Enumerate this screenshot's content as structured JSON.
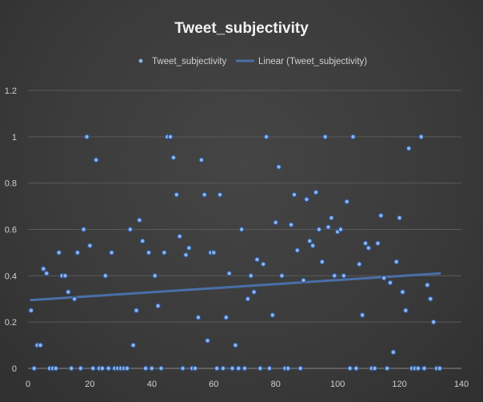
{
  "chart_data": {
    "type": "scatter",
    "title": "Tweet_subjectivity",
    "xlabel": "",
    "ylabel": "",
    "xlim": [
      0,
      140
    ],
    "ylim": [
      0,
      1.2
    ],
    "x_ticks": [
      "0",
      "20",
      "40",
      "60",
      "80",
      "100",
      "120",
      "140"
    ],
    "y_ticks": [
      "0",
      "0.2",
      "0.4",
      "0.6",
      "0.8",
      "1",
      "1.2"
    ],
    "grid": "horizontal",
    "legend_position": "top",
    "point_color": "#8ab4f0",
    "trend_color": "#4a6fa8",
    "series": [
      {
        "name": "Tweet_subjectivity",
        "type": "scatter",
        "points": [
          [
            1,
            0.25
          ],
          [
            2,
            0
          ],
          [
            3,
            0.1
          ],
          [
            4,
            0.1
          ],
          [
            5,
            0.43
          ],
          [
            6,
            0.41
          ],
          [
            7,
            0
          ],
          [
            8,
            0
          ],
          [
            9,
            0
          ],
          [
            10,
            0.5
          ],
          [
            11,
            0.4
          ],
          [
            12,
            0.4
          ],
          [
            13,
            0.33
          ],
          [
            14,
            0
          ],
          [
            15,
            0.3
          ],
          [
            16,
            0.5
          ],
          [
            17,
            0
          ],
          [
            18,
            0.6
          ],
          [
            19,
            1
          ],
          [
            20,
            0.53
          ],
          [
            21,
            0
          ],
          [
            22,
            0.9
          ],
          [
            23,
            0
          ],
          [
            24,
            0
          ],
          [
            25,
            0.4
          ],
          [
            26,
            0
          ],
          [
            27,
            0.5
          ],
          [
            28,
            0
          ],
          [
            29,
            0
          ],
          [
            30,
            0
          ],
          [
            31,
            0
          ],
          [
            32,
            0
          ],
          [
            33,
            0.6
          ],
          [
            34,
            0.1
          ],
          [
            35,
            0.25
          ],
          [
            36,
            0.64
          ],
          [
            37,
            0.55
          ],
          [
            38,
            0
          ],
          [
            39,
            0.5
          ],
          [
            40,
            0
          ],
          [
            41,
            0.4
          ],
          [
            42,
            0.27
          ],
          [
            43,
            0
          ],
          [
            44,
            0.5
          ],
          [
            45,
            1
          ],
          [
            46,
            1
          ],
          [
            47,
            0.91
          ],
          [
            48,
            0.75
          ],
          [
            49,
            0.57
          ],
          [
            50,
            0
          ],
          [
            51,
            0.49
          ],
          [
            52,
            0.52
          ],
          [
            53,
            0
          ],
          [
            54,
            0
          ],
          [
            55,
            0.22
          ],
          [
            56,
            0.9
          ],
          [
            57,
            0.75
          ],
          [
            58,
            0.12
          ],
          [
            59,
            0.5
          ],
          [
            60,
            0.5
          ],
          [
            61,
            0
          ],
          [
            62,
            0.75
          ],
          [
            63,
            0
          ],
          [
            64,
            0.22
          ],
          [
            65,
            0.41
          ],
          [
            66,
            0
          ],
          [
            67,
            0.1
          ],
          [
            68,
            0
          ],
          [
            69,
            0.6
          ],
          [
            70,
            0
          ],
          [
            71,
            0.3
          ],
          [
            72,
            0.4
          ],
          [
            73,
            0.33
          ],
          [
            74,
            0.47
          ],
          [
            75,
            0
          ],
          [
            76,
            0.45
          ],
          [
            77,
            1
          ],
          [
            78,
            0
          ],
          [
            79,
            0.23
          ],
          [
            80,
            0.63
          ],
          [
            81,
            0.87
          ],
          [
            82,
            0.4
          ],
          [
            83,
            0
          ],
          [
            84,
            0
          ],
          [
            85,
            0.62
          ],
          [
            86,
            0.75
          ],
          [
            87,
            0.51
          ],
          [
            88,
            0
          ],
          [
            89,
            0.38
          ],
          [
            90,
            0.73
          ],
          [
            91,
            0.55
          ],
          [
            92,
            0.53
          ],
          [
            93,
            0.76
          ],
          [
            94,
            0.6
          ],
          [
            95,
            0.46
          ],
          [
            96,
            1
          ],
          [
            97,
            0.61
          ],
          [
            98,
            0.65
          ],
          [
            99,
            0.4
          ],
          [
            100,
            0.59
          ],
          [
            101,
            0.6
          ],
          [
            102,
            0.4
          ],
          [
            103,
            0.72
          ],
          [
            104,
            0
          ],
          [
            105,
            1
          ],
          [
            106,
            0
          ],
          [
            107,
            0.45
          ],
          [
            108,
            0.23
          ],
          [
            109,
            0.54
          ],
          [
            110,
            0.52
          ],
          [
            111,
            0
          ],
          [
            112,
            0
          ],
          [
            113,
            0.54
          ],
          [
            114,
            0.66
          ],
          [
            115,
            0.39
          ],
          [
            116,
            0
          ],
          [
            117,
            0.37
          ],
          [
            118,
            0.07
          ],
          [
            119,
            0.46
          ],
          [
            120,
            0.65
          ],
          [
            121,
            0.33
          ],
          [
            122,
            0.25
          ],
          [
            123,
            0.95
          ],
          [
            124,
            0
          ],
          [
            125,
            0
          ],
          [
            126,
            0
          ],
          [
            127,
            1
          ],
          [
            128,
            0
          ],
          [
            129,
            0.36
          ],
          [
            130,
            0.3
          ],
          [
            131,
            0.2
          ],
          [
            132,
            0
          ],
          [
            133,
            0
          ]
        ]
      },
      {
        "name": "Linear (Tweet_subjectivity)",
        "type": "trendline",
        "start": [
          1,
          0.295
        ],
        "end": [
          133,
          0.41
        ]
      }
    ]
  }
}
